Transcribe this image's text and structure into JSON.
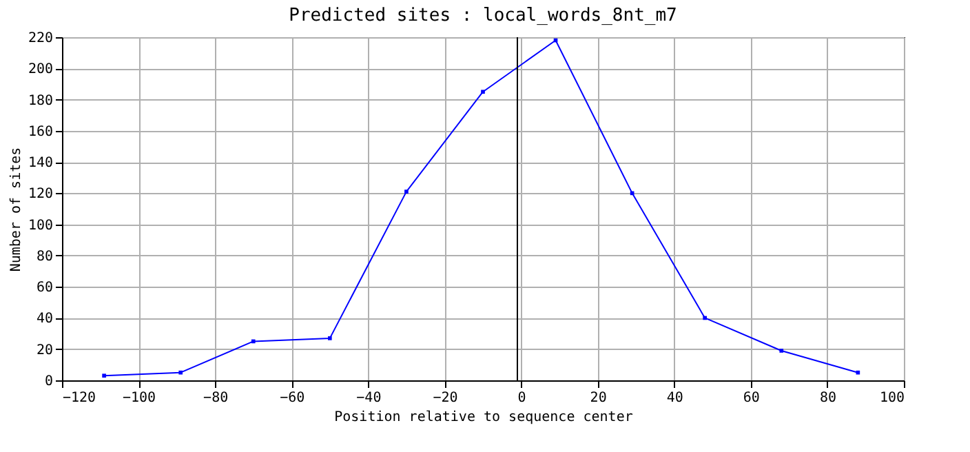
{
  "chart_data": {
    "type": "line",
    "title": "Predicted sites : local_words_8nt_m7",
    "xlabel": "Position relative to sequence center",
    "ylabel": "Number of sites",
    "x": [
      -109,
      -89,
      -70,
      -50,
      -30,
      -10,
      9,
      29,
      48,
      68,
      88
    ],
    "series": [
      {
        "color": "#0000ff",
        "values": [
          3,
          5,
          25,
          27,
          121,
          185,
          218,
          120,
          40,
          19,
          5
        ]
      }
    ],
    "xlim": [
      -120,
      100
    ],
    "xticks": [
      -120,
      -100,
      -80,
      -60,
      -40,
      -20,
      0,
      20,
      40,
      60,
      80,
      100
    ],
    "ylim": [
      0,
      220
    ],
    "yticks": [
      0,
      20,
      40,
      60,
      80,
      100,
      120,
      140,
      160,
      180,
      200,
      220
    ],
    "ref_lines": [
      {
        "axis": "x",
        "value": -1,
        "color": "#000000"
      }
    ],
    "grid": true,
    "marker": "square",
    "line_style": "solid"
  }
}
